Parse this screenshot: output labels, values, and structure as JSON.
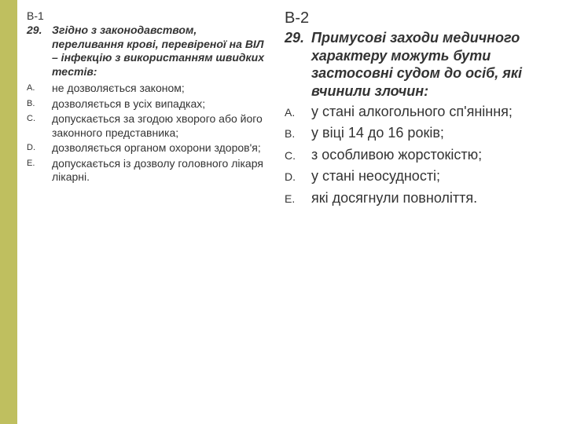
{
  "accent_color": "#bfbf5f",
  "bg_color": "#ffffff",
  "text_color": "#333333",
  "left": {
    "variant": "В-1",
    "q_num": "29.",
    "q_text": "Згідно з законодавством, переливання крові, перевіреної на ВІЛ – інфекцію з використанням швидких тестів:",
    "options": [
      {
        "letter": "A.",
        "text": "не дозволяється законом;"
      },
      {
        "letter": "B.",
        "text": "дозволяється в усіх випадках;"
      },
      {
        "letter": "C.",
        "text": "допускається за згодою хворого або його законного представника;"
      },
      {
        "letter": "D.",
        "text": "дозволяється органом охорони здоров'я;"
      },
      {
        "letter": "E.",
        "text": "допускається із дозволу головного лікаря лікарні."
      }
    ]
  },
  "right": {
    "variant": "В-2",
    "q_num": "29.",
    "q_text": "Примусові  заходи медичного характеру можуть бути застосовні судом до осіб, які вчинили злочин:",
    "options": [
      {
        "letter": "A.",
        "text": "у стані алкогольного сп'яніння;"
      },
      {
        "letter": "B.",
        "text": "у віці 14 до 16 років;"
      },
      {
        "letter": "C.",
        "text": "з особливою жорстокістю;"
      },
      {
        "letter": "D.",
        "text": "у стані неосудності;"
      },
      {
        "letter": "E.",
        "text": "які досягнули повноліття."
      }
    ]
  }
}
